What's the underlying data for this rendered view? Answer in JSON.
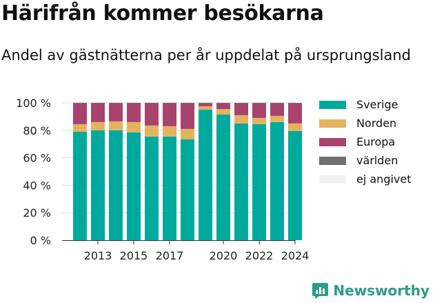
{
  "header": {
    "title": "Härifrån kommer besökarna",
    "subtitle": "Andel av gästnätterna per år uppdelat på ursprungsland"
  },
  "brand": {
    "name": "Newsworthy",
    "icon": "chart-bubble-icon",
    "color": "#2a9d85"
  },
  "chart_data": {
    "type": "bar",
    "stacked": true,
    "years": [
      2012,
      2013,
      2014,
      2015,
      2016,
      2017,
      2018,
      2019,
      2020,
      2021,
      2022,
      2023,
      2024
    ],
    "x_tick_labels": [
      "2013",
      "2015",
      "2017",
      "2020",
      "2022",
      "2024"
    ],
    "ylim": [
      0,
      100
    ],
    "y_ticks": [
      0,
      20,
      40,
      60,
      80,
      100
    ],
    "y_tick_labels": [
      "0 %",
      "20 %",
      "40 %",
      "60 %",
      "80 %",
      "100 %"
    ],
    "grid": true,
    "legend_position": "right",
    "series": [
      {
        "name": "Sverige",
        "color": "#00a99d",
        "values": [
          79,
          80,
          80,
          78.5,
          75.5,
          75.5,
          73.5,
          95,
          91.5,
          85,
          84.5,
          86,
          79.5
        ]
      },
      {
        "name": "Norden",
        "color": "#e4b35e",
        "values": [
          5.5,
          6,
          6.5,
          7.5,
          8,
          7.5,
          7.5,
          2.5,
          4,
          6,
          4.5,
          4.5,
          5.5
        ]
      },
      {
        "name": "Europa",
        "color": "#a8436e",
        "values": [
          15,
          13.5,
          13,
          13.5,
          16,
          16.5,
          18.5,
          2,
          4,
          8.5,
          10.5,
          9,
          14.5
        ]
      },
      {
        "name": "världen",
        "color": "#707070",
        "values": [
          0.5,
          0.5,
          0.5,
          0.5,
          0.5,
          0.5,
          0.5,
          0.5,
          0.5,
          0.5,
          0.5,
          0.5,
          0.5
        ]
      },
      {
        "name": "ej angivet",
        "color": "#f2f2f2",
        "values": [
          0,
          0,
          0,
          0,
          0,
          0,
          0,
          0,
          0,
          0,
          0,
          0,
          0
        ]
      }
    ]
  }
}
